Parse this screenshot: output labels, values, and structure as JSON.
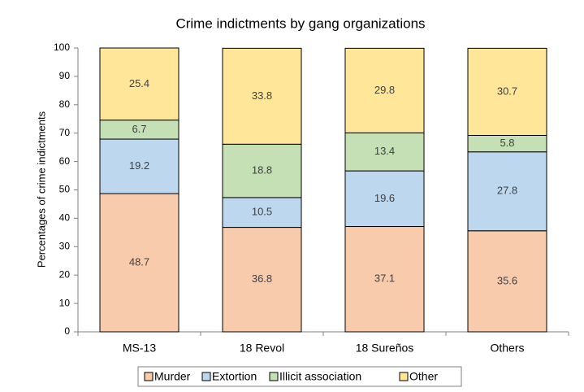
{
  "chart_data": {
    "type": "stacked_bar",
    "title": "Crime indictments by gang organizations",
    "y_label": "Percentages of crime indictments",
    "categories": [
      "MS-13",
      "18 Revol",
      "18 Sureños",
      "Others"
    ],
    "series": [
      {
        "name": "Murder",
        "color": "#f8cbad",
        "values": [
          48.7,
          36.8,
          37.1,
          35.6
        ]
      },
      {
        "name": "Extortion",
        "color": "#bdd7ee",
        "values": [
          19.2,
          10.5,
          19.6,
          27.8
        ]
      },
      {
        "name": "Illicit association",
        "color": "#c5e0b4",
        "values": [
          6.7,
          18.8,
          13.4,
          5.8
        ]
      },
      {
        "name": "Other",
        "color": "#ffe699",
        "values": [
          25.4,
          33.8,
          29.8,
          30.7
        ]
      }
    ],
    "ylim": [
      0,
      100
    ],
    "yticks": [
      0,
      10,
      20,
      30,
      40,
      50,
      60,
      70,
      80,
      90,
      100
    ],
    "legend": "bottom"
  }
}
